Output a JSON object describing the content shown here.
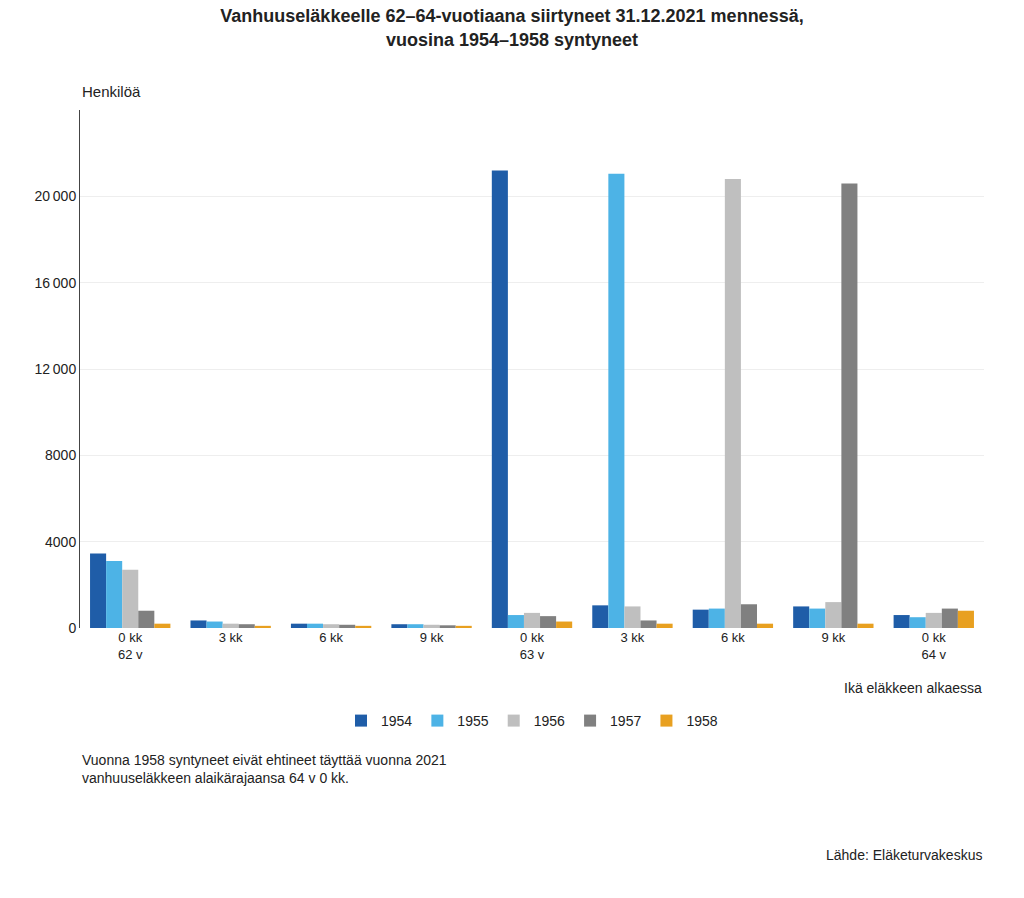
{
  "chart_data": {
    "type": "bar",
    "title": "Vanhuuseläkkeelle 62–64-vuotiaana siirtyneet 31.12.2021 mennessä,\nvuosina 1954–1958 syntyneet",
    "ylabel": "Henkilöä",
    "xlabel": "Ikä eläkkeen alkaessa",
    "annotations": [
      "Vuonna 1958 syntyneet eivät ehtineet täyttää vuonna 2021\nvanhuuseläkkeen alaikärajaansa 64 v 0 kk.",
      "Lähde: Eläketurvakeskus"
    ],
    "categories": [
      "0 kk\n62 v",
      "3 kk",
      "6 kk",
      "9 kk",
      "0 kk\n63 v",
      "3 kk",
      "6 kk",
      "9 kk",
      "0 kk\n64 v"
    ],
    "series": [
      {
        "name": "1954",
        "color": "#1F5DA8",
        "values": [
          3450,
          350,
          200,
          175,
          21200,
          1050,
          850,
          1000,
          600
        ]
      },
      {
        "name": "1955",
        "color": "#4DB3E6",
        "values": [
          3100,
          300,
          200,
          175,
          600,
          21050,
          900,
          900,
          500
        ]
      },
      {
        "name": "1956",
        "color": "#BFBFBF",
        "values": [
          2700,
          200,
          175,
          150,
          700,
          1000,
          20800,
          1200,
          700
        ]
      },
      {
        "name": "1957",
        "color": "#808080",
        "values": [
          800,
          175,
          150,
          125,
          550,
          350,
          1100,
          20600,
          900
        ]
      },
      {
        "name": "1958",
        "color": "#E8A020",
        "values": [
          200,
          100,
          100,
          100,
          300,
          200,
          200,
          200,
          800
        ]
      }
    ],
    "ylim": [
      0,
      24000
    ],
    "yticks": [
      0,
      4000,
      8000,
      {
        "value": 12000,
        "label": "12 000"
      },
      {
        "value": 16000,
        "label": "16 000"
      },
      {
        "value": 20000,
        "label": "20 000"
      }
    ],
    "grid": true,
    "legend": "bottom"
  }
}
